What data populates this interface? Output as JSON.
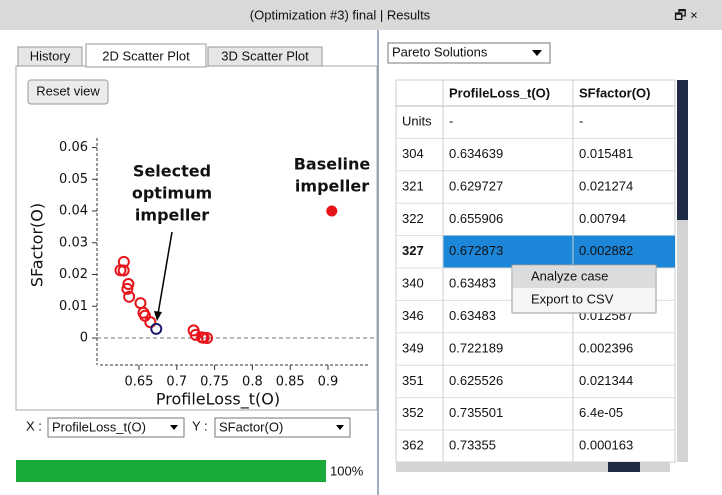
{
  "window": {
    "title": "(Optimization #3) final | Results",
    "controls": "🗗 ×"
  },
  "tabs": [
    "History",
    "2D Scatter Plot",
    "3D Scatter Plot"
  ],
  "reset_button": "Reset view",
  "plot": {
    "type": "scatter",
    "xlabel": "ProfileLoss_t(O)",
    "ylabel": "SFactor(O)",
    "xlim": [
      0.59,
      0.955
    ],
    "ylim": [
      -0.0085,
      0.063
    ],
    "xticks": [
      0.65,
      0.7,
      0.75,
      0.8,
      0.85,
      0.9
    ],
    "yticks": [
      0,
      0.01,
      0.02,
      0.03,
      0.04,
      0.05,
      0.06
    ],
    "points": {
      "color": "#e8141c",
      "x": [
        0.63,
        0.629727,
        0.625526,
        0.634639,
        0.636,
        0.637,
        0.655906,
        0.652,
        0.658,
        0.665,
        0.722189,
        0.725,
        0.73355,
        0.735501,
        0.74
      ],
      "y": [
        0.024,
        0.021274,
        0.021344,
        0.015481,
        0.017,
        0.013,
        0.00794,
        0.011,
        0.007,
        0.005,
        0.002396,
        0.001,
        0.000163,
        6.4e-05,
        0.0
      ]
    },
    "selected": {
      "color": "#1a1a6e",
      "x": 0.672873,
      "y": 0.002882
    },
    "baseline": {
      "color": "#e8141c",
      "x": 0.905,
      "y": 0.04
    },
    "annotations": {
      "selected": [
        "Selected",
        "optimum",
        "impeller"
      ],
      "baseline": [
        "Baseline",
        "impeller"
      ]
    }
  },
  "axis_selectors": {
    "x_label": "X :",
    "x_value": "ProfileLoss_t(O)",
    "y_label": "Y :",
    "y_value": "SFactor(O)"
  },
  "progress": {
    "value": 100,
    "label": "100%"
  },
  "results_dropdown": "Pareto Solutions",
  "table": {
    "columns": [
      "ProfileLoss_t(O)",
      "SFfactor(O)"
    ],
    "rows": [
      [
        "Units",
        "-",
        "-"
      ],
      [
        "304",
        "0.634639",
        "0.015481"
      ],
      [
        "321",
        "0.629727",
        "0.021274"
      ],
      [
        "322",
        "0.655906",
        "0.00794"
      ],
      [
        "327",
        "0.672873",
        "0.002882"
      ],
      [
        "340",
        "0.63483"
      ],
      [
        "346",
        "0.63483",
        "0.012587"
      ],
      [
        "349",
        "0.722189",
        "0.002396"
      ],
      [
        "351",
        "0.625526",
        "0.021344"
      ],
      [
        "352",
        "0.735501",
        "6.4e-05"
      ],
      [
        "362",
        "0.73355",
        "0.000163"
      ]
    ],
    "selected_row": 4
  },
  "context_menu": [
    "Analyze case",
    "Export to CSV"
  ]
}
